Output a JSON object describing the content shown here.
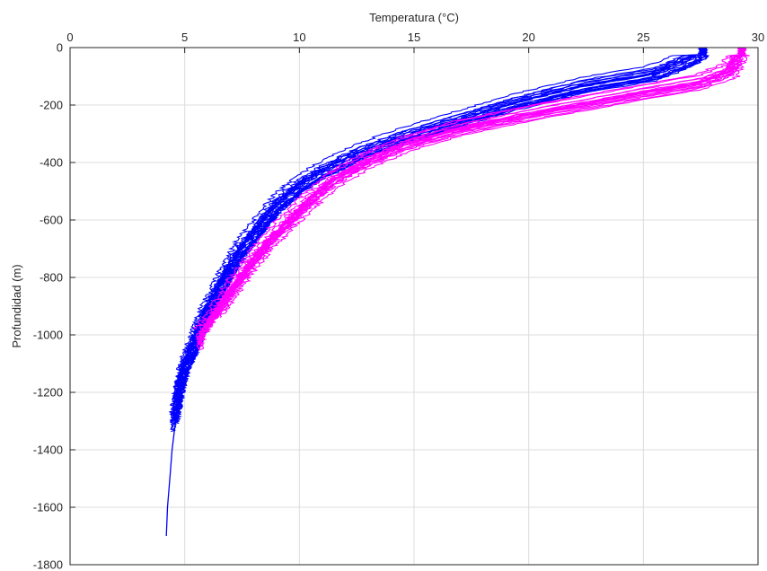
{
  "chart_data": {
    "type": "line",
    "title": "",
    "xlabel": "Temperatura (°C)",
    "ylabel": "Profundidad (m)",
    "xlim": [
      0,
      30
    ],
    "ylim": [
      -1800,
      0
    ],
    "x_axis_location": "top",
    "y_axis_location": "left",
    "grid": true,
    "legend": "none",
    "xticks": [
      0,
      5,
      10,
      15,
      20,
      25,
      30
    ],
    "yticks": [
      0,
      -200,
      -400,
      -600,
      -800,
      -1000,
      -1200,
      -1400,
      -1600,
      -1800
    ],
    "series": [
      {
        "color": "#0000ff",
        "profile_count": 20,
        "representative_profile": [
          {
            "x": 27.6,
            "y": 0
          },
          {
            "x": 27.3,
            "y": -30
          },
          {
            "x": 25.5,
            "y": -90
          },
          {
            "x": 22.5,
            "y": -130
          },
          {
            "x": 19.5,
            "y": -190
          },
          {
            "x": 17.0,
            "y": -250
          },
          {
            "x": 14.5,
            "y": -310
          },
          {
            "x": 12.5,
            "y": -370
          },
          {
            "x": 11.0,
            "y": -430
          },
          {
            "x": 10.0,
            "y": -480
          },
          {
            "x": 9.0,
            "y": -550
          },
          {
            "x": 8.2,
            "y": -630
          },
          {
            "x": 7.5,
            "y": -700
          },
          {
            "x": 6.9,
            "y": -780
          },
          {
            "x": 6.3,
            "y": -870
          },
          {
            "x": 5.8,
            "y": -950
          },
          {
            "x": 5.4,
            "y": -1040
          },
          {
            "x": 5.0,
            "y": -1110
          },
          {
            "x": 4.75,
            "y": -1200
          },
          {
            "x": 4.6,
            "y": -1280
          }
        ],
        "deep_profile": [
          {
            "x": 5.2,
            "y": -1050
          },
          {
            "x": 4.95,
            "y": -1120
          },
          {
            "x": 4.75,
            "y": -1200
          },
          {
            "x": 4.6,
            "y": -1300
          },
          {
            "x": 4.45,
            "y": -1400
          },
          {
            "x": 4.35,
            "y": -1500
          },
          {
            "x": 4.25,
            "y": -1600
          },
          {
            "x": 4.2,
            "y": -1700
          }
        ]
      },
      {
        "color": "#ff00ff",
        "profile_count": 18,
        "representative_profile": [
          {
            "x": 29.3,
            "y": 0
          },
          {
            "x": 29.1,
            "y": -25
          },
          {
            "x": 28.8,
            "y": -80
          },
          {
            "x": 27.5,
            "y": -120
          },
          {
            "x": 24.0,
            "y": -170
          },
          {
            "x": 20.0,
            "y": -230
          },
          {
            "x": 17.0,
            "y": -280
          },
          {
            "x": 14.5,
            "y": -340
          },
          {
            "x": 12.8,
            "y": -400
          },
          {
            "x": 11.5,
            "y": -460
          },
          {
            "x": 10.5,
            "y": -530
          },
          {
            "x": 9.6,
            "y": -600
          },
          {
            "x": 8.6,
            "y": -680
          },
          {
            "x": 7.8,
            "y": -760
          },
          {
            "x": 7.0,
            "y": -850
          },
          {
            "x": 6.3,
            "y": -930
          },
          {
            "x": 5.7,
            "y": -1000
          }
        ]
      }
    ]
  }
}
